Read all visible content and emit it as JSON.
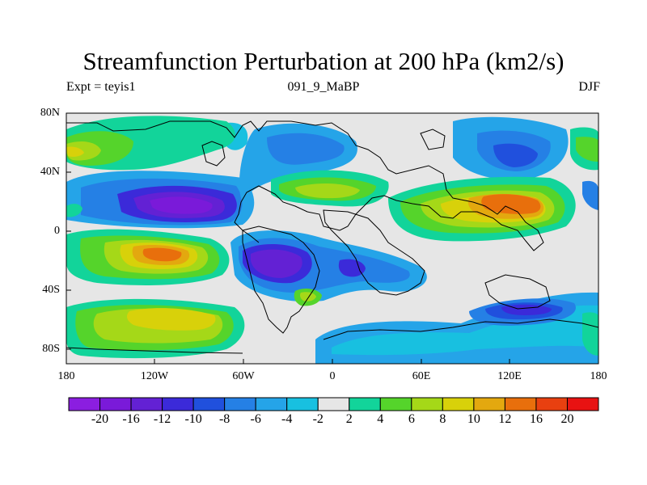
{
  "title": "Streamfunction Perturbation at 200 hPa (km2/s)",
  "subtitle_left": "Expt = teyis1",
  "subtitle_center": "091_9_MaBP",
  "subtitle_right": "DJF",
  "lat_labels": [
    "80N",
    "40N",
    "0",
    "40S",
    "80S"
  ],
  "lon_labels": [
    "180",
    "120W",
    "60W",
    "0",
    "60E",
    "120E",
    "180"
  ],
  "colorbar": {
    "labels": [
      "-20",
      "-16",
      "-12",
      "-10",
      "-8",
      "-6",
      "-4",
      "-2",
      "2",
      "4",
      "6",
      "8",
      "10",
      "12",
      "16",
      "20"
    ],
    "colors": [
      "#8b1ee0",
      "#7a1ad9",
      "#6321d4",
      "#3b2ad9",
      "#2050dd",
      "#2580e5",
      "#25a4e8",
      "#18c0e0",
      "#e6e6e6",
      "#12d49a",
      "#55d42b",
      "#a5d818",
      "#d8d10a",
      "#e3a80f",
      "#e86f0c",
      "#e84010",
      "#e81212"
    ]
  }
}
